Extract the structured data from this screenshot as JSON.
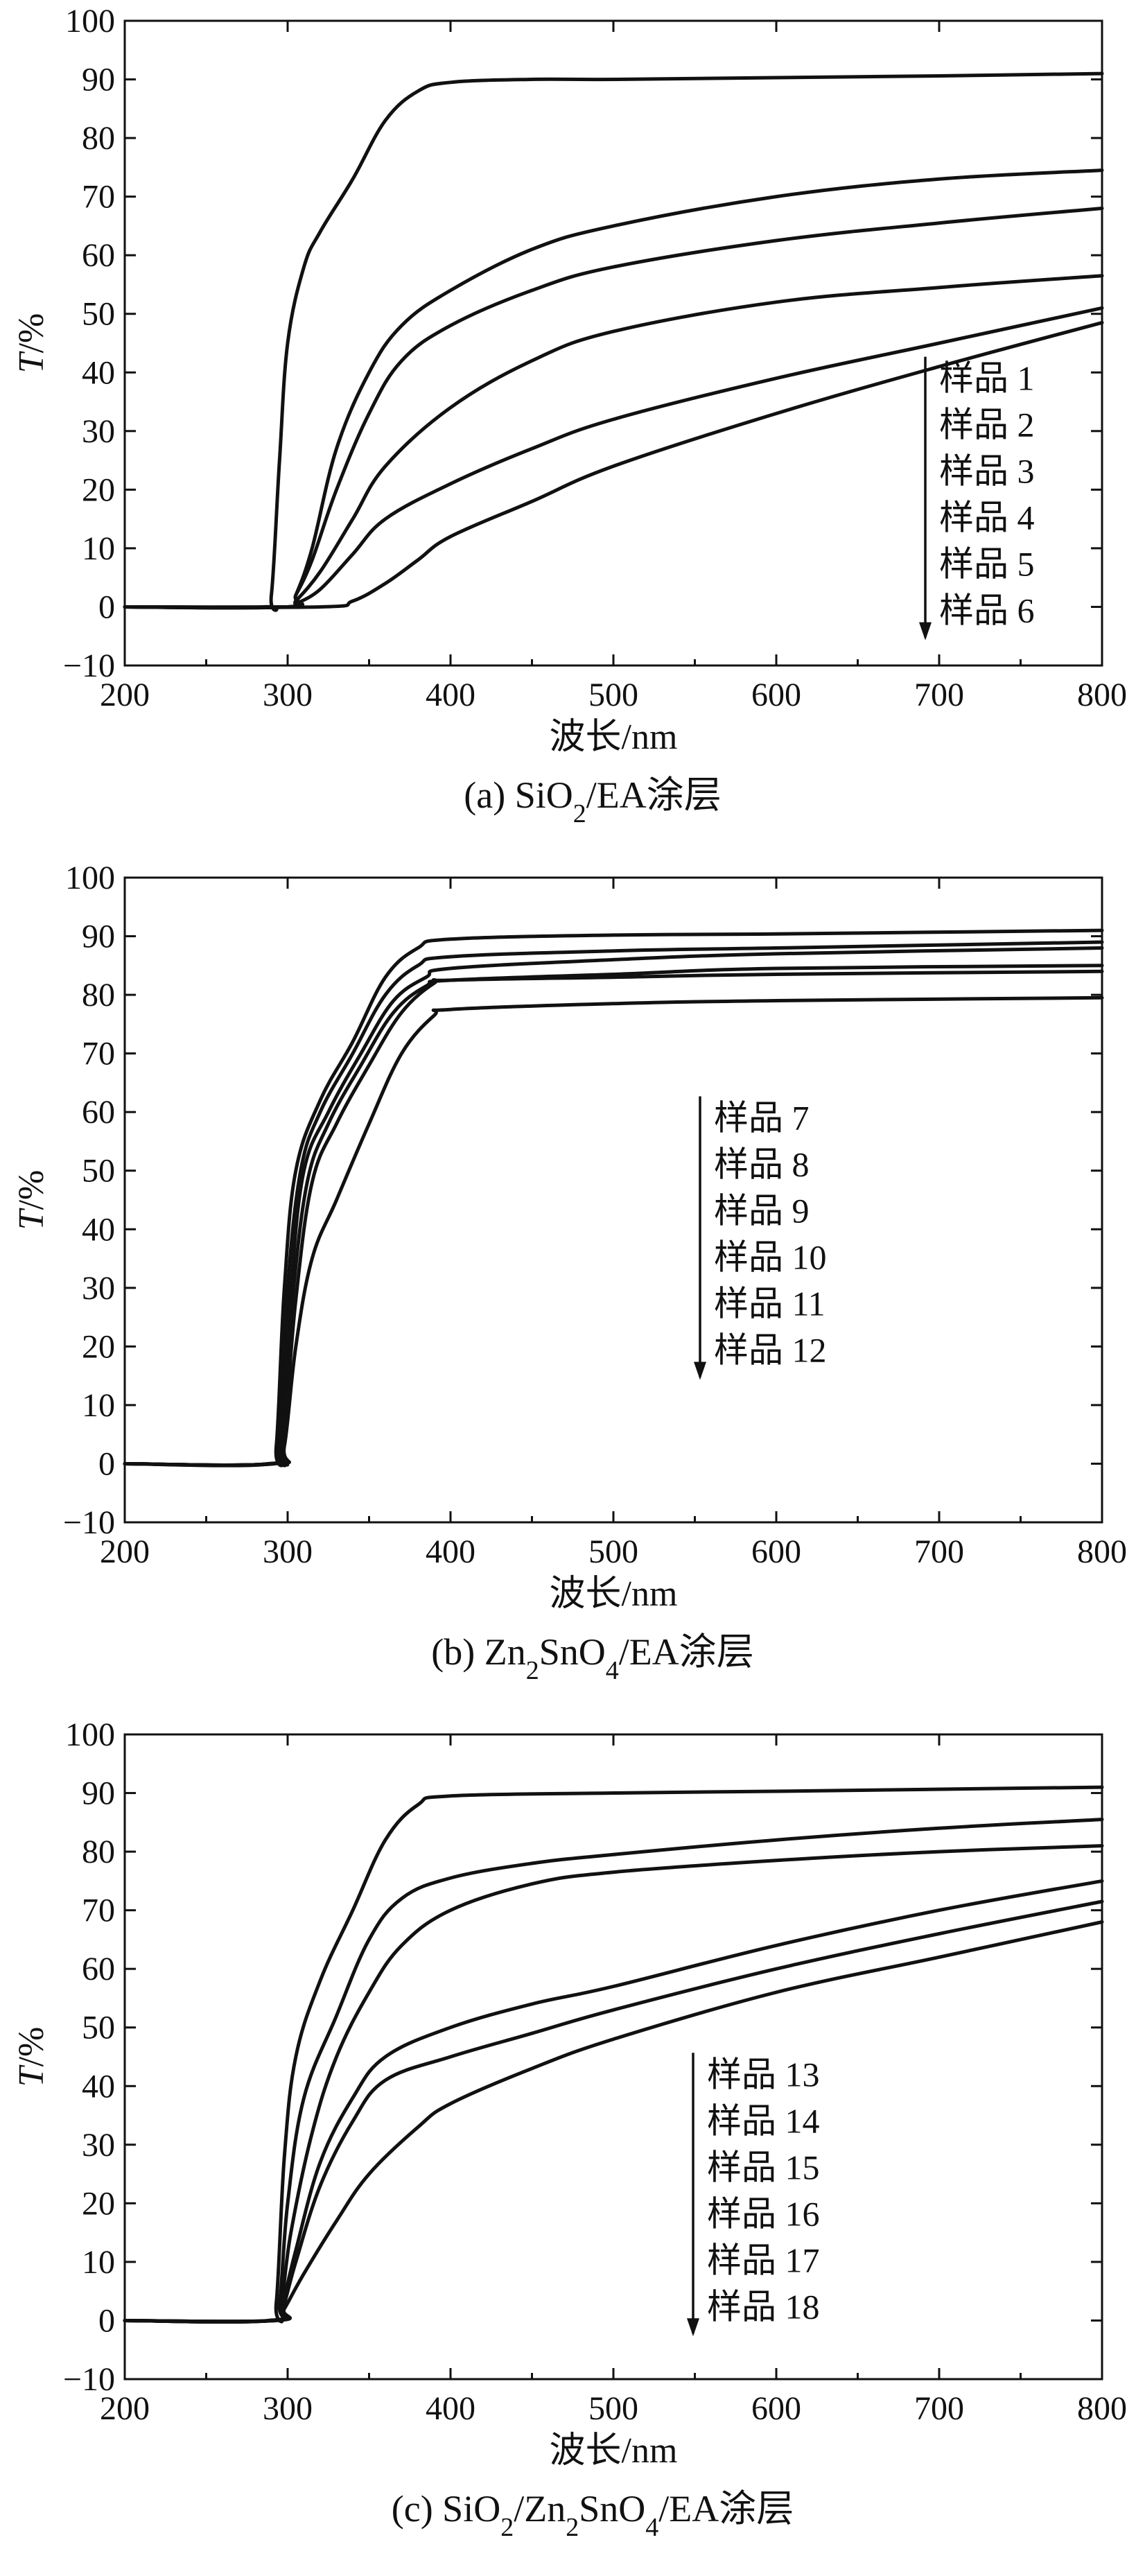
{
  "chart_data": [
    {
      "type": "line",
      "caption_prefix": "(a) SiO",
      "caption_sub1": "2",
      "caption_mid": "/EA",
      "caption_sub2": "",
      "caption_tail": "",
      "caption_suffix": "涂层",
      "xlabel": "波长/nm",
      "ylabel_italic": "T",
      "ylabel_rest": "/%",
      "xlim": [
        200,
        800
      ],
      "ylim": [
        -10,
        100
      ],
      "xticks": [
        200,
        300,
        400,
        500,
        600,
        700,
        800
      ],
      "yticks": [
        -10,
        0,
        10,
        20,
        30,
        40,
        50,
        60,
        70,
        80,
        90,
        100
      ],
      "legend_placement": "center-right",
      "series": [
        {
          "name": "样品 1",
          "points": [
            [
              200,
              0
            ],
            [
              285,
              0
            ],
            [
              290,
              2
            ],
            [
              295,
              25
            ],
            [
              300,
              45
            ],
            [
              310,
              58
            ],
            [
              320,
              64
            ],
            [
              340,
              73
            ],
            [
              360,
              83
            ],
            [
              380,
              88
            ],
            [
              400,
              89.5
            ],
            [
              450,
              90
            ],
            [
              500,
              90
            ],
            [
              600,
              90.3
            ],
            [
              700,
              90.6
            ],
            [
              800,
              91
            ]
          ]
        },
        {
          "name": "样品 2",
          "points": [
            [
              200,
              0
            ],
            [
              300,
              0
            ],
            [
              305,
              2
            ],
            [
              315,
              10
            ],
            [
              330,
              27
            ],
            [
              350,
              40
            ],
            [
              370,
              48
            ],
            [
              400,
              54
            ],
            [
              450,
              61
            ],
            [
              500,
              65
            ],
            [
              600,
              70
            ],
            [
              700,
              73
            ],
            [
              800,
              74.5
            ]
          ]
        },
        {
          "name": "样品 3",
          "points": [
            [
              200,
              0
            ],
            [
              300,
              0
            ],
            [
              305,
              2
            ],
            [
              315,
              8
            ],
            [
              330,
              20
            ],
            [
              350,
              33
            ],
            [
              370,
              42
            ],
            [
              400,
              48
            ],
            [
              450,
              54
            ],
            [
              500,
              58
            ],
            [
              600,
              62.5
            ],
            [
              700,
              65.5
            ],
            [
              800,
              68
            ]
          ]
        },
        {
          "name": "样品 4",
          "points": [
            [
              200,
              0
            ],
            [
              300,
              0
            ],
            [
              305,
              1
            ],
            [
              320,
              6
            ],
            [
              340,
              15
            ],
            [
              360,
              24
            ],
            [
              400,
              34
            ],
            [
              450,
              42
            ],
            [
              500,
              47
            ],
            [
              600,
              52
            ],
            [
              700,
              54.5
            ],
            [
              800,
              56.5
            ]
          ]
        },
        {
          "name": "样品 5",
          "points": [
            [
              200,
              0
            ],
            [
              300,
              0
            ],
            [
              305,
              0.5
            ],
            [
              320,
              3
            ],
            [
              340,
              9
            ],
            [
              360,
              15
            ],
            [
              400,
              21
            ],
            [
              450,
              27
            ],
            [
              500,
              32
            ],
            [
              600,
              39
            ],
            [
              700,
              45
            ],
            [
              800,
              51
            ]
          ]
        },
        {
          "name": "样品 6",
          "points": [
            [
              200,
              0
            ],
            [
              320,
              0
            ],
            [
              340,
              1
            ],
            [
              360,
              4
            ],
            [
              380,
              8
            ],
            [
              400,
              12
            ],
            [
              450,
              18
            ],
            [
              500,
              24
            ],
            [
              600,
              33
            ],
            [
              700,
              41
            ],
            [
              800,
              48.5
            ]
          ]
        }
      ]
    },
    {
      "type": "line",
      "caption_prefix": "(b) Zn",
      "caption_sub1": "2",
      "caption_mid": "SnO",
      "caption_sub2": "4",
      "caption_tail": "/EA",
      "caption_suffix": "涂层",
      "xlabel": "波长/nm",
      "ylabel_italic": "T",
      "ylabel_rest": "/%",
      "xlim": [
        200,
        800
      ],
      "ylim": [
        -10,
        100
      ],
      "xticks": [
        200,
        300,
        400,
        500,
        600,
        700,
        800
      ],
      "yticks": [
        -10,
        0,
        10,
        20,
        30,
        40,
        50,
        60,
        70,
        80,
        90,
        100
      ],
      "legend_placement": "center",
      "series": [
        {
          "name": "样品 7",
          "points": [
            [
              200,
              0
            ],
            [
              288,
              0
            ],
            [
              293,
              3
            ],
            [
              298,
              30
            ],
            [
              305,
              50
            ],
            [
              320,
              62
            ],
            [
              340,
              72
            ],
            [
              360,
              83
            ],
            [
              380,
              88
            ],
            [
              400,
              89.5
            ],
            [
              500,
              90.2
            ],
            [
              600,
              90.4
            ],
            [
              800,
              91
            ]
          ]
        },
        {
          "name": "样品 8",
          "points": [
            [
              200,
              0
            ],
            [
              290,
              0
            ],
            [
              295,
              4
            ],
            [
              300,
              30
            ],
            [
              308,
              50
            ],
            [
              320,
              60
            ],
            [
              340,
              70
            ],
            [
              360,
              80
            ],
            [
              380,
              85
            ],
            [
              400,
              86.5
            ],
            [
              500,
              87.5
            ],
            [
              600,
              88
            ],
            [
              800,
              89
            ]
          ]
        },
        {
          "name": "样品 9",
          "points": [
            [
              200,
              0
            ],
            [
              290,
              0
            ],
            [
              295,
              3
            ],
            [
              302,
              30
            ],
            [
              310,
              50
            ],
            [
              325,
              60
            ],
            [
              345,
              70
            ],
            [
              365,
              79
            ],
            [
              385,
              83
            ],
            [
              400,
              84.5
            ],
            [
              500,
              86
            ],
            [
              600,
              87
            ],
            [
              800,
              88
            ]
          ]
        },
        {
          "name": "样品 10",
          "points": [
            [
              200,
              0
            ],
            [
              290,
              0
            ],
            [
              296,
              3
            ],
            [
              303,
              28
            ],
            [
              312,
              48
            ],
            [
              325,
              58
            ],
            [
              345,
              68
            ],
            [
              365,
              77
            ],
            [
              385,
              81.5
            ],
            [
              400,
              82.5
            ],
            [
              500,
              83.5
            ],
            [
              600,
              84.5
            ],
            [
              800,
              85
            ]
          ]
        },
        {
          "name": "样品 11",
          "points": [
            [
              200,
              0
            ],
            [
              291,
              0
            ],
            [
              297,
              3
            ],
            [
              305,
              28
            ],
            [
              315,
              48
            ],
            [
              330,
              58
            ],
            [
              350,
              68
            ],
            [
              370,
              77
            ],
            [
              390,
              82
            ],
            [
              400,
              82.5
            ],
            [
              500,
              83
            ],
            [
              600,
              83.5
            ],
            [
              800,
              84
            ]
          ]
        },
        {
          "name": "样品 12",
          "points": [
            [
              200,
              0
            ],
            [
              292,
              0
            ],
            [
              298,
              3
            ],
            [
              305,
              20
            ],
            [
              315,
              35
            ],
            [
              330,
              45
            ],
            [
              350,
              58
            ],
            [
              370,
              70
            ],
            [
              390,
              76.5
            ],
            [
              400,
              77.5
            ],
            [
              500,
              78.5
            ],
            [
              600,
              79
            ],
            [
              800,
              79.5
            ]
          ]
        }
      ]
    },
    {
      "type": "line",
      "caption_prefix": "(c) SiO",
      "caption_sub1": "2",
      "caption_mid": "/Zn",
      "caption_sub2": "2",
      "caption_tail": "SnO",
      "caption_sub3": "4",
      "caption_tail2": "/EA",
      "caption_suffix": "涂层",
      "xlabel": "波长/nm",
      "ylabel_italic": "T",
      "ylabel_rest": "/%",
      "xlim": [
        200,
        800
      ],
      "ylim": [
        -10,
        100
      ],
      "xticks": [
        200,
        300,
        400,
        500,
        600,
        700,
        800
      ],
      "yticks": [
        -10,
        0,
        10,
        20,
        30,
        40,
        50,
        60,
        70,
        80,
        90,
        100
      ],
      "legend_placement": "center-right",
      "series": [
        {
          "name": "样品 13",
          "points": [
            [
              200,
              0
            ],
            [
              288,
              0
            ],
            [
              293,
              3
            ],
            [
              298,
              28
            ],
            [
              305,
              45
            ],
            [
              320,
              58
            ],
            [
              340,
              70
            ],
            [
              360,
              82
            ],
            [
              380,
              88
            ],
            [
              400,
              89.5
            ],
            [
              500,
              90
            ],
            [
              600,
              90.3
            ],
            [
              800,
              91
            ]
          ]
        },
        {
          "name": "样品 14",
          "points": [
            [
              200,
              0
            ],
            [
              290,
              0
            ],
            [
              295,
              3
            ],
            [
              300,
              20
            ],
            [
              310,
              38
            ],
            [
              330,
              52
            ],
            [
              350,
              65
            ],
            [
              370,
              72
            ],
            [
              400,
              75.5
            ],
            [
              450,
              78
            ],
            [
              500,
              79.5
            ],
            [
              600,
              82
            ],
            [
              700,
              84
            ],
            [
              800,
              85.5
            ]
          ]
        },
        {
          "name": "样品 15",
          "points": [
            [
              200,
              0
            ],
            [
              290,
              0
            ],
            [
              296,
              3
            ],
            [
              302,
              15
            ],
            [
              315,
              32
            ],
            [
              330,
              45
            ],
            [
              350,
              56
            ],
            [
              370,
              64
            ],
            [
              400,
              70
            ],
            [
              450,
              74.5
            ],
            [
              500,
              76.5
            ],
            [
              600,
              78.5
            ],
            [
              700,
              80
            ],
            [
              800,
              81
            ]
          ]
        },
        {
          "name": "样品 16",
          "points": [
            [
              200,
              0
            ],
            [
              291,
              0
            ],
            [
              296,
              2
            ],
            [
              305,
              12
            ],
            [
              320,
              27
            ],
            [
              340,
              38
            ],
            [
              360,
              45
            ],
            [
              400,
              50
            ],
            [
              450,
              54
            ],
            [
              500,
              57
            ],
            [
              600,
              64
            ],
            [
              700,
              70
            ],
            [
              800,
              75
            ]
          ]
        },
        {
          "name": "样品 17",
          "points": [
            [
              200,
              0
            ],
            [
              292,
              0
            ],
            [
              297,
              2
            ],
            [
              305,
              10
            ],
            [
              320,
              23
            ],
            [
              340,
              34
            ],
            [
              360,
              41
            ],
            [
              400,
              45
            ],
            [
              450,
              49
            ],
            [
              500,
              53
            ],
            [
              600,
              60
            ],
            [
              700,
              66
            ],
            [
              800,
              71.5
            ]
          ]
        },
        {
          "name": "样品 18",
          "points": [
            [
              200,
              0
            ],
            [
              293,
              0
            ],
            [
              298,
              2
            ],
            [
              310,
              8
            ],
            [
              330,
              17
            ],
            [
              350,
              25
            ],
            [
              380,
              33
            ],
            [
              400,
              37
            ],
            [
              450,
              43
            ],
            [
              500,
              48
            ],
            [
              600,
              56
            ],
            [
              700,
              62
            ],
            [
              800,
              68
            ]
          ]
        }
      ]
    }
  ]
}
